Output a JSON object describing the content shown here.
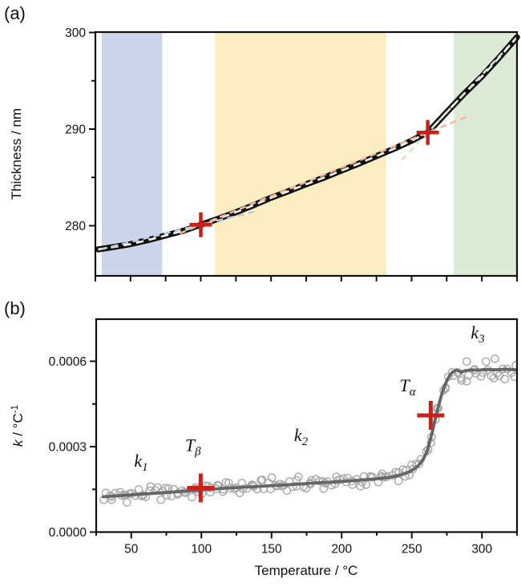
{
  "figure": {
    "panel_a_label": "(a)",
    "panel_b_label": "(b)"
  },
  "chart_data": [
    {
      "type": "line",
      "panel": "a",
      "ylabel": "Thickness / nm",
      "xlabel": "",
      "xlim": [
        25,
        325
      ],
      "ylim": [
        274.8,
        300.3
      ],
      "ticks": {
        "y_major": [
          280,
          290,
          300
        ],
        "y_major_labels": [
          "280",
          "290",
          "300"
        ],
        "y_minor": [
          285,
          295
        ],
        "x_minor_step": 25
      },
      "bands": [
        {
          "name": "beta-relaxation-band",
          "from": 29.5,
          "to": 72.5,
          "color": "#ccd5e9"
        },
        {
          "name": "alpha-relaxation-band",
          "from": 110,
          "to": 232,
          "color": "#fcedc3"
        },
        {
          "name": "flow-regime-band",
          "from": 280,
          "to": 325,
          "color": "#dcead6"
        }
      ],
      "curve": {
        "color": "#0e0e0e",
        "dash_color": "#f1f1ed",
        "t": [
          27,
          40,
          50,
          62,
          75,
          88,
          100,
          112,
          125,
          138,
          150,
          162,
          175,
          188,
          200,
          212,
          225,
          238,
          250,
          256,
          261.5,
          267,
          275,
          287,
          300,
          312,
          325
        ],
        "thickness": [
          277.55,
          277.85,
          278.1,
          278.5,
          279.0,
          279.5,
          280.1,
          280.7,
          281.4,
          282.15,
          282.9,
          283.55,
          284.3,
          285.0,
          285.7,
          286.4,
          287.2,
          288.0,
          288.8,
          289.25,
          289.65,
          290.5,
          291.75,
          293.6,
          295.45,
          297.35,
          299.5
        ]
      },
      "fits": [
        {
          "name": "k1-fit-line",
          "color": "#bdc9dd",
          "t1": 29,
          "v1": 277.57,
          "t2": 140,
          "v2": 281.53
        },
        {
          "name": "k2-fit-line",
          "color": "#f4b79b",
          "t1": 85,
          "v1": 279.21,
          "t2": 289,
          "v2": 291.27
        },
        {
          "name": "k3-fit-line",
          "color": "#d7e4cf",
          "t1": 243,
          "v1": 286.78,
          "t2": 325,
          "v2": 299.49
        }
      ],
      "markers": [
        {
          "name": "t-beta-cross-a",
          "t": 100,
          "value": 280.1
        },
        {
          "name": "t-alpha-cross-a",
          "t": 261.5,
          "value": 289.65
        }
      ],
      "marker_color": "#c9211a"
    },
    {
      "type": "scatter",
      "panel": "b",
      "ylabel": "k / °C⁻¹",
      "ylabel_parts": {
        "k": "k",
        "rest": " / °C",
        "sup": "-1"
      },
      "xlabel": "Temperature / °C",
      "xlim": [
        25,
        325
      ],
      "ylim": [
        0,
        0.00075
      ],
      "ticks": {
        "x_major": [
          50,
          100,
          150,
          200,
          250,
          300
        ],
        "x_major_labels": [
          "50",
          "100",
          "150",
          "200",
          "250",
          "300"
        ],
        "x_minor_step": 25,
        "y_major_values": [
          0,
          0.0003,
          0.0006
        ],
        "y_major_labels": [
          "0.0000",
          "0.0003",
          "0.0006"
        ],
        "y_minor_values": [
          0.00015,
          0.00045
        ]
      },
      "trend": {
        "color": "#656565",
        "t": [
          30,
          45,
          60,
          75,
          90,
          105,
          120,
          135,
          150,
          165,
          180,
          195,
          210,
          225,
          235,
          243,
          249,
          253,
          256,
          258.5,
          261,
          263,
          265,
          267,
          269,
          271,
          273,
          275,
          277,
          279,
          282,
          285,
          288,
          292,
          297,
          303,
          310,
          317,
          324
        ],
        "k": [
          0.000124,
          0.000129,
          0.000134,
          0.000139,
          0.000144,
          0.00015,
          0.000155,
          0.000159,
          0.000163,
          0.000167,
          0.000172,
          0.000176,
          0.000181,
          0.000187,
          0.000193,
          0.000202,
          0.000213,
          0.000226,
          0.000241,
          0.000259,
          0.000285,
          0.00032,
          0.00036,
          0.000402,
          0.000442,
          0.000478,
          0.000508,
          0.000532,
          0.00055,
          0.000562,
          0.00057,
          0.000561,
          0.000567,
          0.00057,
          0.000569,
          0.000571,
          0.00057,
          0.000572,
          0.00057
        ]
      },
      "scatter": {
        "count": 164,
        "t_min": 30,
        "t_max": 324,
        "noise": 2e-05,
        "noise_plateau": 3.4e-05,
        "plateau_from": 276,
        "x_jitter": 1.5,
        "radius": 4.6,
        "color": "#a7a7a7"
      },
      "markers": [
        {
          "name": "t-beta-cross-b",
          "t": 99.5,
          "k": 0.000155
        },
        {
          "name": "t-alpha-cross-b",
          "t": 263.5,
          "k": 0.00041
        }
      ],
      "marker_color": "#c9211a",
      "annotations": [
        {
          "name": "k1-label",
          "main": "k",
          "sub": "1",
          "t": 57,
          "k": 0.00023
        },
        {
          "name": "t-beta-label",
          "main": "T",
          "sub": "β",
          "t": 94,
          "k": 0.000285
        },
        {
          "name": "k2-label",
          "main": "k",
          "sub": "2",
          "t": 171,
          "k": 0.00032
        },
        {
          "name": "t-alpha-label",
          "main": "T",
          "sub": "α",
          "t": 247,
          "k": 0.000495
        },
        {
          "name": "k3-label",
          "main": "k",
          "sub": "3",
          "t": 297,
          "k": 0.00068
        }
      ]
    }
  ]
}
